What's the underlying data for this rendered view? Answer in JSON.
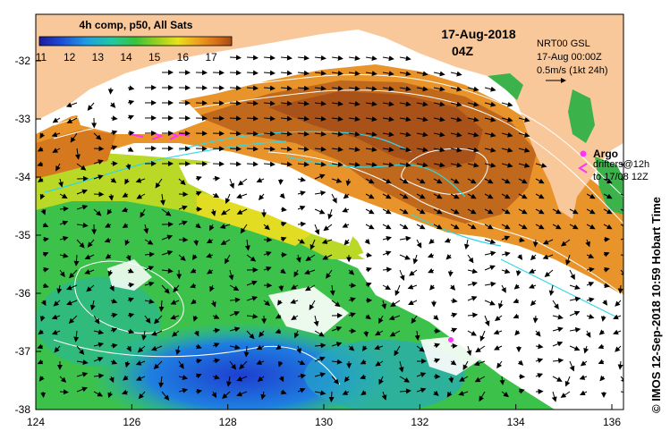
{
  "colorbar": {
    "title": "4h comp, p50, All Sats",
    "ticks": [
      "11",
      "12",
      "13",
      "14",
      "15",
      "16",
      "17"
    ],
    "colors": [
      "#1a1a9e",
      "#1f4fd8",
      "#1fa0e0",
      "#21c9a0",
      "#39c33a",
      "#9ed11f",
      "#e8e21a",
      "#efa21e",
      "#d6701a",
      "#a84a10"
    ]
  },
  "header": {
    "date": "17-Aug-2018",
    "time": "04Z"
  },
  "info_box": {
    "line1": "NRT00 GSL",
    "line2": "17-Aug 00:00Z",
    "line3": "0.5m/s (1kt 24h)"
  },
  "legend": {
    "argo_label": "Argo",
    "drifters_label": "drifters@12h",
    "drifters_to": "to 17/08 12Z",
    "argo_color": "#ff33ff"
  },
  "credit": "© IMOS 12-Sep-2018 10:59 Hobart Time",
  "axes": {
    "x_ticks": [
      "124",
      "126",
      "128",
      "130",
      "132",
      "134",
      "136"
    ],
    "y_ticks": [
      "-32",
      "-33",
      "-34",
      "-35",
      "-36",
      "-37",
      "-38"
    ]
  },
  "colors": {
    "land": "#f9c89a",
    "coast_green": "#3cb24a",
    "contour": "#ffffff",
    "track": "#33d6e6"
  }
}
